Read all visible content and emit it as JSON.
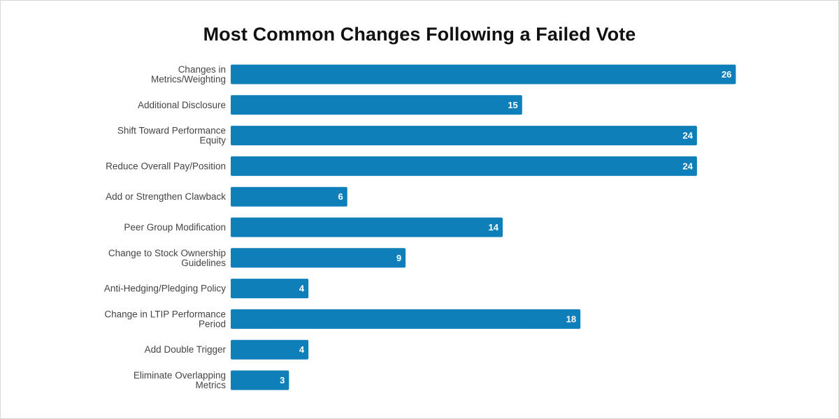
{
  "chart_data": {
    "type": "bar",
    "orientation": "horizontal",
    "title": "Most Common Changes Following a Failed Vote",
    "xlabel": "",
    "ylabel": "",
    "categories": [
      [
        "Changes in",
        "Metrics/Weighting"
      ],
      [
        "Additional Disclosure"
      ],
      [
        "Shift Toward Performance",
        "Equity"
      ],
      [
        "Reduce Overall Pay/Position"
      ],
      [
        "Add or Strengthen Clawback"
      ],
      [
        "Peer Group Modification"
      ],
      [
        "Change to Stock Ownership",
        "Guidelines"
      ],
      [
        "Anti-Hedging/Pledging Policy"
      ],
      [
        "Change in LTIP Performance",
        "Period"
      ],
      [
        "Add Double Trigger"
      ],
      [
        "Eliminate Overlapping",
        "Metrics"
      ]
    ],
    "values": [
      26,
      15,
      24,
      24,
      6,
      14,
      9,
      4,
      18,
      4,
      3
    ],
    "xlim": [
      0,
      28
    ],
    "grid": false,
    "legend": "none",
    "data_labels": "inside-end",
    "bar_color": "#0f7fba"
  }
}
